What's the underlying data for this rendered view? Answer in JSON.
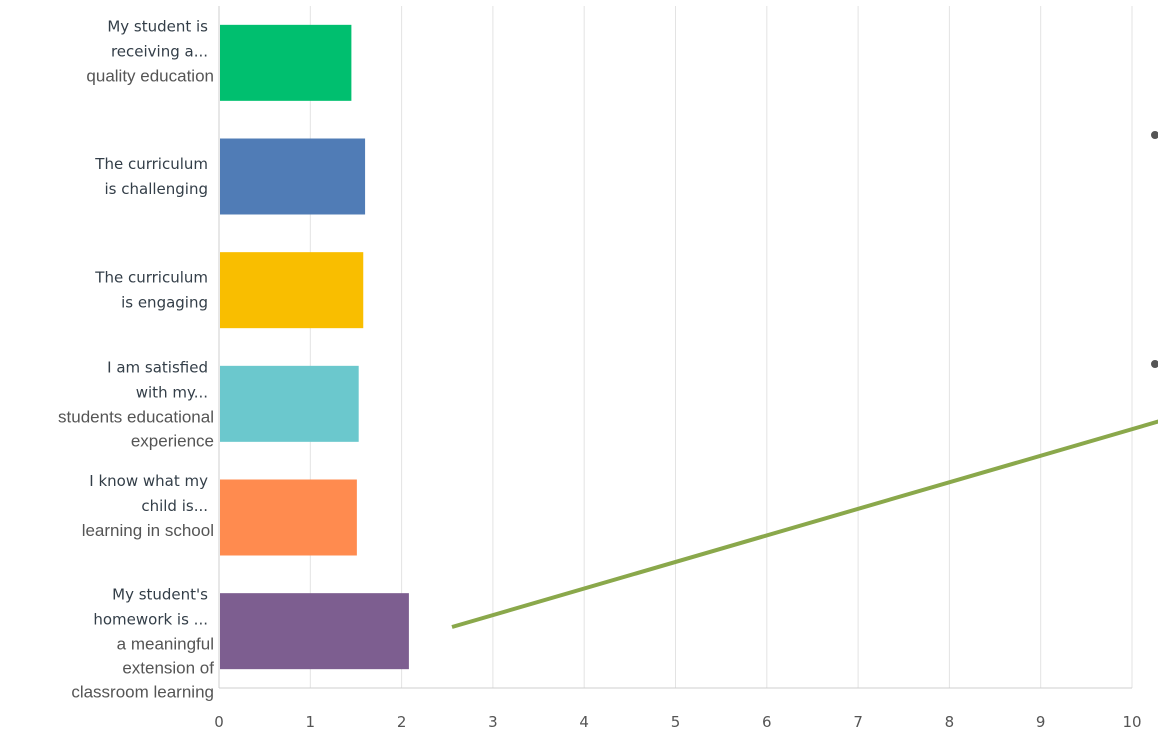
{
  "chart_data": {
    "type": "bar",
    "orientation": "horizontal",
    "xlim": [
      0,
      10
    ],
    "x_ticks": [
      "0",
      "1",
      "2",
      "3",
      "4",
      "5",
      "6",
      "7",
      "8",
      "9",
      "10"
    ],
    "grid": true,
    "categories": [
      {
        "label_lines": [
          "My student is",
          "receiving a..."
        ],
        "full_text_lines": [
          "quality education"
        ],
        "value": 1.45,
        "color": "#00bf6f"
      },
      {
        "label_lines": [
          "The curriculum",
          "is challenging"
        ],
        "full_text_lines": [],
        "value": 1.6,
        "color": "#507cb6"
      },
      {
        "label_lines": [
          "The curriculum",
          "is engaging"
        ],
        "full_text_lines": [],
        "value": 1.58,
        "color": "#f9be00"
      },
      {
        "label_lines": [
          "I am satisfied",
          "with my..."
        ],
        "full_text_lines": [
          "students educational",
          "experience"
        ],
        "value": 1.53,
        "color": "#6bc8cd"
      },
      {
        "label_lines": [
          "I know what my",
          "child is..."
        ],
        "full_text_lines": [
          "learning in school"
        ],
        "value": 1.51,
        "color": "#ff8b4f"
      },
      {
        "label_lines": [
          "My student's",
          "homework is ..."
        ],
        "full_text_lines": [
          "a meaningful",
          "extension of",
          "classroom learning"
        ],
        "value": 2.08,
        "color": "#7d5e90"
      }
    ]
  },
  "decorations": {
    "line_color": "#8aa84b",
    "bullet_color": "#555555"
  }
}
